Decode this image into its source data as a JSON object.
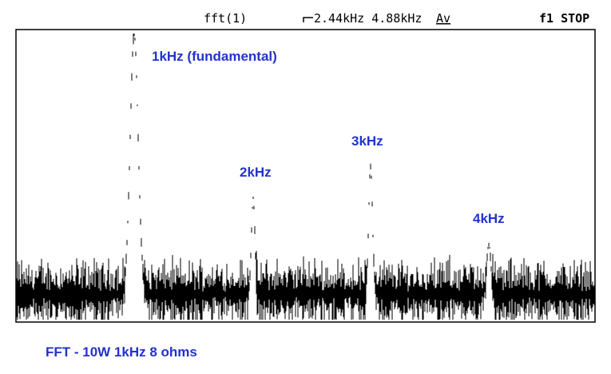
{
  "header": {
    "label": "fft(1)",
    "span": "2.44kHz 4.88kHz",
    "mode": "Av",
    "status": "f1 STOP"
  },
  "annotations": [
    "1kHz (fundamental)",
    "2kHz",
    "3kHz",
    "4kHz"
  ],
  "caption": "FFT - 10W 1kHz 8 ohms"
}
